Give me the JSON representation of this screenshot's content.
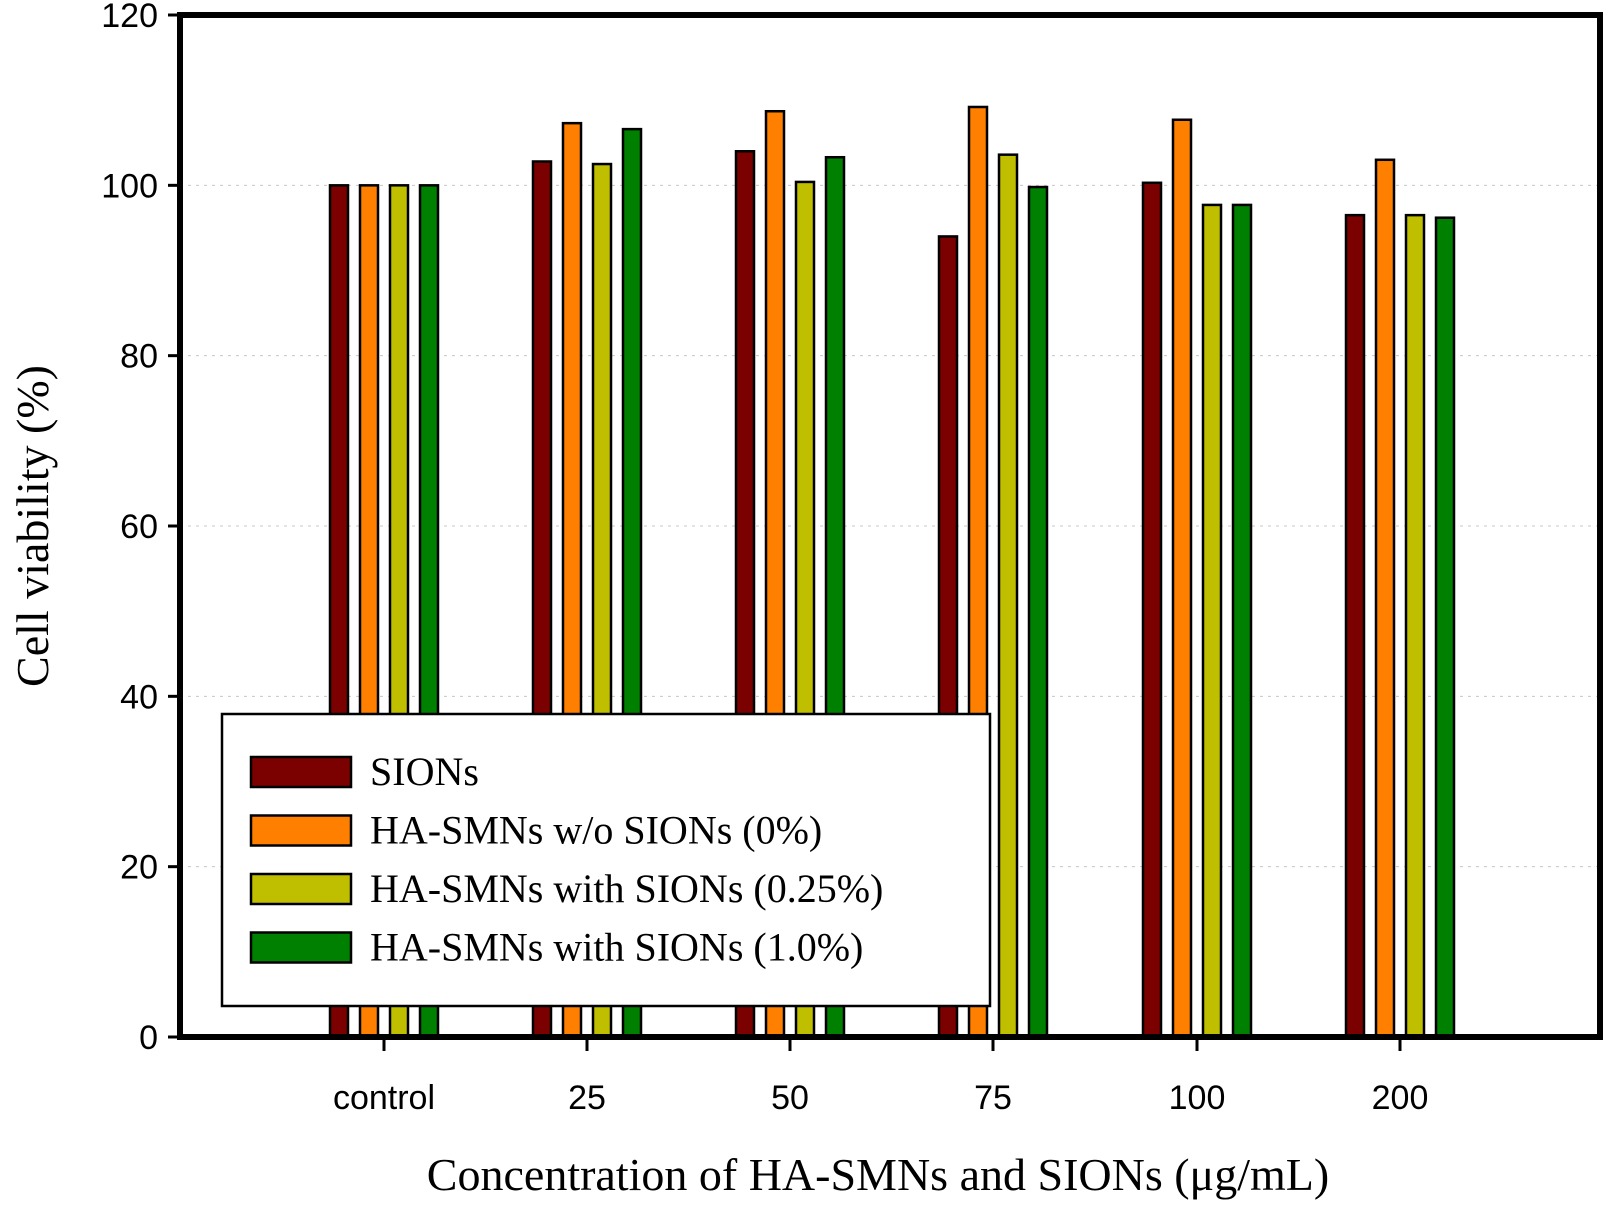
{
  "chart_data": {
    "type": "bar",
    "xlabel": "Concentration of HA-SMNs and SIONs (μg/mL)",
    "ylabel": "Cell viability (%)",
    "ylim": [
      0,
      120
    ],
    "yticks": [
      0,
      20,
      40,
      60,
      80,
      100,
      120
    ],
    "grid": true,
    "legend_position": "bottom-left",
    "categories": [
      "control",
      "25",
      "50",
      "75",
      "100",
      "200"
    ],
    "series": [
      {
        "name": "SIONs",
        "color": "#7b0000",
        "values": [
          100,
          102.8,
          104,
          94,
          100.3,
          96.5
        ]
      },
      {
        "name": "HA-SMNs w/o SIONs (0%)",
        "color": "#ff8000",
        "values": [
          100,
          107.3,
          108.7,
          109.2,
          107.7,
          103
        ]
      },
      {
        "name": "HA-SMNs with SIONs (0.25%)",
        "color": "#bfbf00",
        "values": [
          100,
          102.5,
          100.4,
          103.6,
          97.7,
          96.5
        ]
      },
      {
        "name": "HA-SMNs with SIONs (1.0%)",
        "color": "#008000",
        "values": [
          100,
          106.6,
          103.3,
          99.8,
          97.7,
          96.2
        ]
      }
    ]
  }
}
